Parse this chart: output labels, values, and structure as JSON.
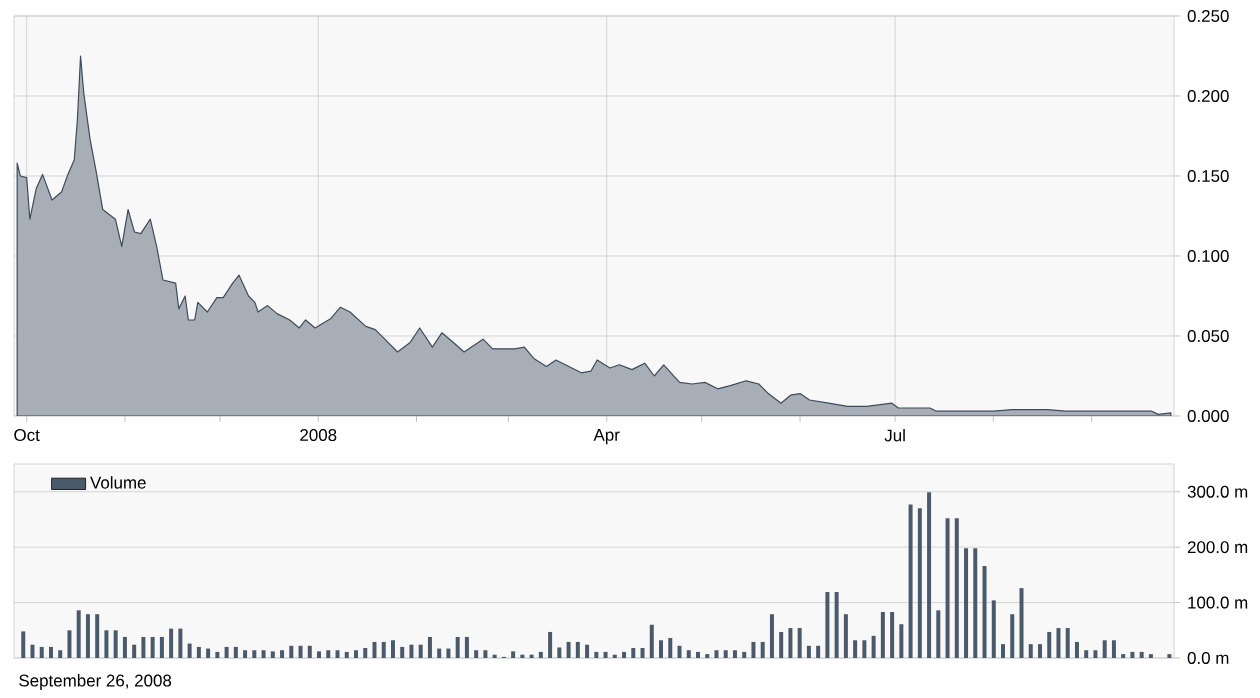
{
  "chart_data": [
    {
      "type": "area",
      "x": [
        "2007-09-28",
        "2007-09-29",
        "2007-10-01",
        "2007-10-02",
        "2007-10-04",
        "2007-10-06",
        "2007-10-09",
        "2007-10-12",
        "2007-10-14",
        "2007-10-16",
        "2007-10-17",
        "2007-10-18",
        "2007-10-19",
        "2007-10-21",
        "2007-10-23",
        "2007-10-25",
        "2007-10-29",
        "2007-10-31",
        "2007-11-02",
        "2007-11-04",
        "2007-11-06",
        "2007-11-09",
        "2007-11-11",
        "2007-11-13",
        "2007-11-17",
        "2007-11-18",
        "2007-11-20",
        "2007-11-21",
        "2007-11-23",
        "2007-11-24",
        "2007-11-27",
        "2007-11-30",
        "2007-12-02",
        "2007-12-05",
        "2007-12-07",
        "2007-12-10",
        "2007-12-12",
        "2007-12-13",
        "2007-12-16",
        "2007-12-19",
        "2007-12-23",
        "2007-12-26",
        "2007-12-28",
        "2007-12-31",
        "2008-01-05",
        "2008-01-08",
        "2008-01-11",
        "2008-01-16",
        "2008-01-19",
        "2008-01-22",
        "2008-01-26",
        "2008-01-30",
        "2008-02-02",
        "2008-02-06",
        "2008-02-09",
        "2008-02-12",
        "2008-02-16",
        "2008-02-19",
        "2008-02-22",
        "2008-02-25",
        "2008-03-03",
        "2008-03-06",
        "2008-03-09",
        "2008-03-13",
        "2008-03-16",
        "2008-03-21",
        "2008-03-24",
        "2008-03-27",
        "2008-03-29",
        "2008-04-02",
        "2008-04-05",
        "2008-04-09",
        "2008-04-13",
        "2008-04-16",
        "2008-04-19",
        "2008-04-24",
        "2008-04-28",
        "2008-05-02",
        "2008-05-06",
        "2008-05-10",
        "2008-05-15",
        "2008-05-19",
        "2008-05-22",
        "2008-05-26",
        "2008-05-29",
        "2008-06-01",
        "2008-06-04",
        "2008-06-10",
        "2008-06-16",
        "2008-06-22",
        "2008-06-30",
        "2008-07-02",
        "2008-07-12",
        "2008-07-14",
        "2008-07-22",
        "2008-08-01",
        "2008-08-07",
        "2008-08-18",
        "2008-08-24",
        "2008-09-20",
        "2008-09-22",
        "2008-09-26"
      ],
      "series": [
        {
          "color": "#3d4b5c",
          "values": [
            0.158,
            0.15,
            0.149,
            0.123,
            0.142,
            0.151,
            0.135,
            0.14,
            0.151,
            0.16,
            0.185,
            0.225,
            0.202,
            0.173,
            0.152,
            0.129,
            0.123,
            0.106,
            0.129,
            0.115,
            0.114,
            0.123,
            0.106,
            0.085,
            0.083,
            0.067,
            0.075,
            0.06,
            0.06,
            0.071,
            0.065,
            0.074,
            0.074,
            0.083,
            0.088,
            0.075,
            0.071,
            0.065,
            0.069,
            0.064,
            0.06,
            0.055,
            0.06,
            0.055,
            0.061,
            0.068,
            0.065,
            0.056,
            0.054,
            0.048,
            0.04,
            0.046,
            0.055,
            0.043,
            0.052,
            0.047,
            0.04,
            0.044,
            0.048,
            0.042,
            0.042,
            0.043,
            0.036,
            0.031,
            0.035,
            0.03,
            0.027,
            0.028,
            0.035,
            0.03,
            0.032,
            0.029,
            0.033,
            0.025,
            0.032,
            0.021,
            0.02,
            0.021,
            0.017,
            0.019,
            0.022,
            0.02,
            0.014,
            0.008,
            0.013,
            0.014,
            0.01,
            0.008,
            0.006,
            0.006,
            0.008,
            0.005,
            0.005,
            0.003,
            0.003,
            0.003,
            0.004,
            0.004,
            0.003,
            0.003,
            0.001,
            0.002
          ]
        }
      ],
      "xlim": [
        "2007-09-27",
        "2008-09-27"
      ],
      "xticks": [
        {
          "value": "2007-10-01",
          "label": "Oct"
        },
        {
          "value": "2007-11-01",
          "label": null
        },
        {
          "value": "2007-12-01",
          "label": null
        },
        {
          "value": "2008-01-01",
          "label": "2008"
        },
        {
          "value": "2008-02-01",
          "label": null
        },
        {
          "value": "2008-03-01",
          "label": null
        },
        {
          "value": "2008-04-01",
          "label": "Apr"
        },
        {
          "value": "2008-05-01",
          "label": null
        },
        {
          "value": "2008-06-01",
          "label": null
        },
        {
          "value": "2008-07-01",
          "label": "Jul"
        },
        {
          "value": "2008-08-01",
          "label": null
        },
        {
          "value": "2008-09-01",
          "label": null
        }
      ],
      "ylim": [
        0,
        0.25
      ],
      "yticks": [
        {
          "value": 0,
          "label": "0.000"
        },
        {
          "value": 0.05,
          "label": "0.050"
        },
        {
          "value": 0.1,
          "label": "0.100"
        },
        {
          "value": 0.15,
          "label": "0.150"
        },
        {
          "value": 0.2,
          "label": "0.200"
        },
        {
          "value": 0.25,
          "label": "0.250"
        }
      ],
      "grid": true
    },
    {
      "type": "bar",
      "categories": [
        null,
        null,
        null,
        null,
        null,
        null,
        null,
        null,
        null,
        null,
        null,
        null,
        null,
        null,
        null,
        null,
        null,
        null,
        null,
        null,
        null,
        null,
        null,
        null,
        null,
        null,
        null,
        null,
        null,
        null,
        null,
        null,
        null,
        null,
        null,
        null,
        null,
        null,
        null,
        null,
        null,
        null,
        null,
        null,
        null,
        null,
        null,
        null,
        null,
        null,
        null,
        null,
        null,
        null,
        null,
        null,
        null,
        null,
        null,
        null,
        null,
        null,
        null,
        null,
        null,
        null,
        null,
        null,
        null,
        null,
        null,
        null,
        null,
        null,
        null,
        null,
        null,
        null,
        null,
        null,
        null,
        null,
        null,
        null,
        null,
        null,
        null,
        null,
        null,
        null,
        null,
        null,
        null,
        null,
        null,
        null,
        null,
        null,
        null,
        null,
        null,
        null,
        null,
        null,
        null,
        null,
        null,
        null,
        null,
        null,
        null,
        null,
        null,
        null,
        null,
        null,
        null,
        null,
        null,
        null,
        null,
        null,
        null,
        null,
        null
      ],
      "series": [
        {
          "name": "Volume",
          "color": "#4a5a6b",
          "values": [
            48,
            24,
            20,
            20,
            14,
            50,
            86,
            79,
            79,
            50,
            50,
            38,
            24,
            38,
            38,
            38,
            53,
            53,
            26,
            20,
            17,
            11,
            20,
            20,
            14,
            14,
            14,
            12,
            14,
            22,
            22,
            22,
            12,
            14,
            14,
            11,
            14,
            18,
            29,
            29,
            32,
            20,
            24,
            24,
            38,
            17,
            17,
            38,
            38,
            14,
            14,
            6,
            2,
            12,
            6,
            6,
            11,
            47,
            19,
            29,
            29,
            24,
            11,
            11,
            6,
            11,
            18,
            18,
            60,
            32,
            36,
            22,
            14,
            11,
            7,
            14,
            14,
            14,
            11,
            29,
            29,
            79,
            47,
            54,
            54,
            22,
            22,
            119,
            119,
            79,
            32,
            32,
            40,
            83,
            83,
            61,
            277,
            270,
            299,
            86,
            252,
            252,
            198,
            198,
            166,
            104,
            25,
            79,
            126,
            25,
            25,
            47,
            54,
            54,
            29,
            14,
            14,
            32,
            32,
            7,
            11,
            11,
            7,
            0,
            7
          ]
        }
      ],
      "ylim": [
        0,
        350
      ],
      "yticks": [
        {
          "value": 0,
          "label": "0.0 m"
        },
        {
          "value": 100,
          "label": "100.0 m"
        },
        {
          "value": 200,
          "label": "200.0 m"
        },
        {
          "value": 300,
          "label": "300.0 m"
        }
      ],
      "tick_labels": "y",
      "grid": "y",
      "legend": "top left",
      "annotations": [
        "September 26, 2008"
      ]
    }
  ]
}
